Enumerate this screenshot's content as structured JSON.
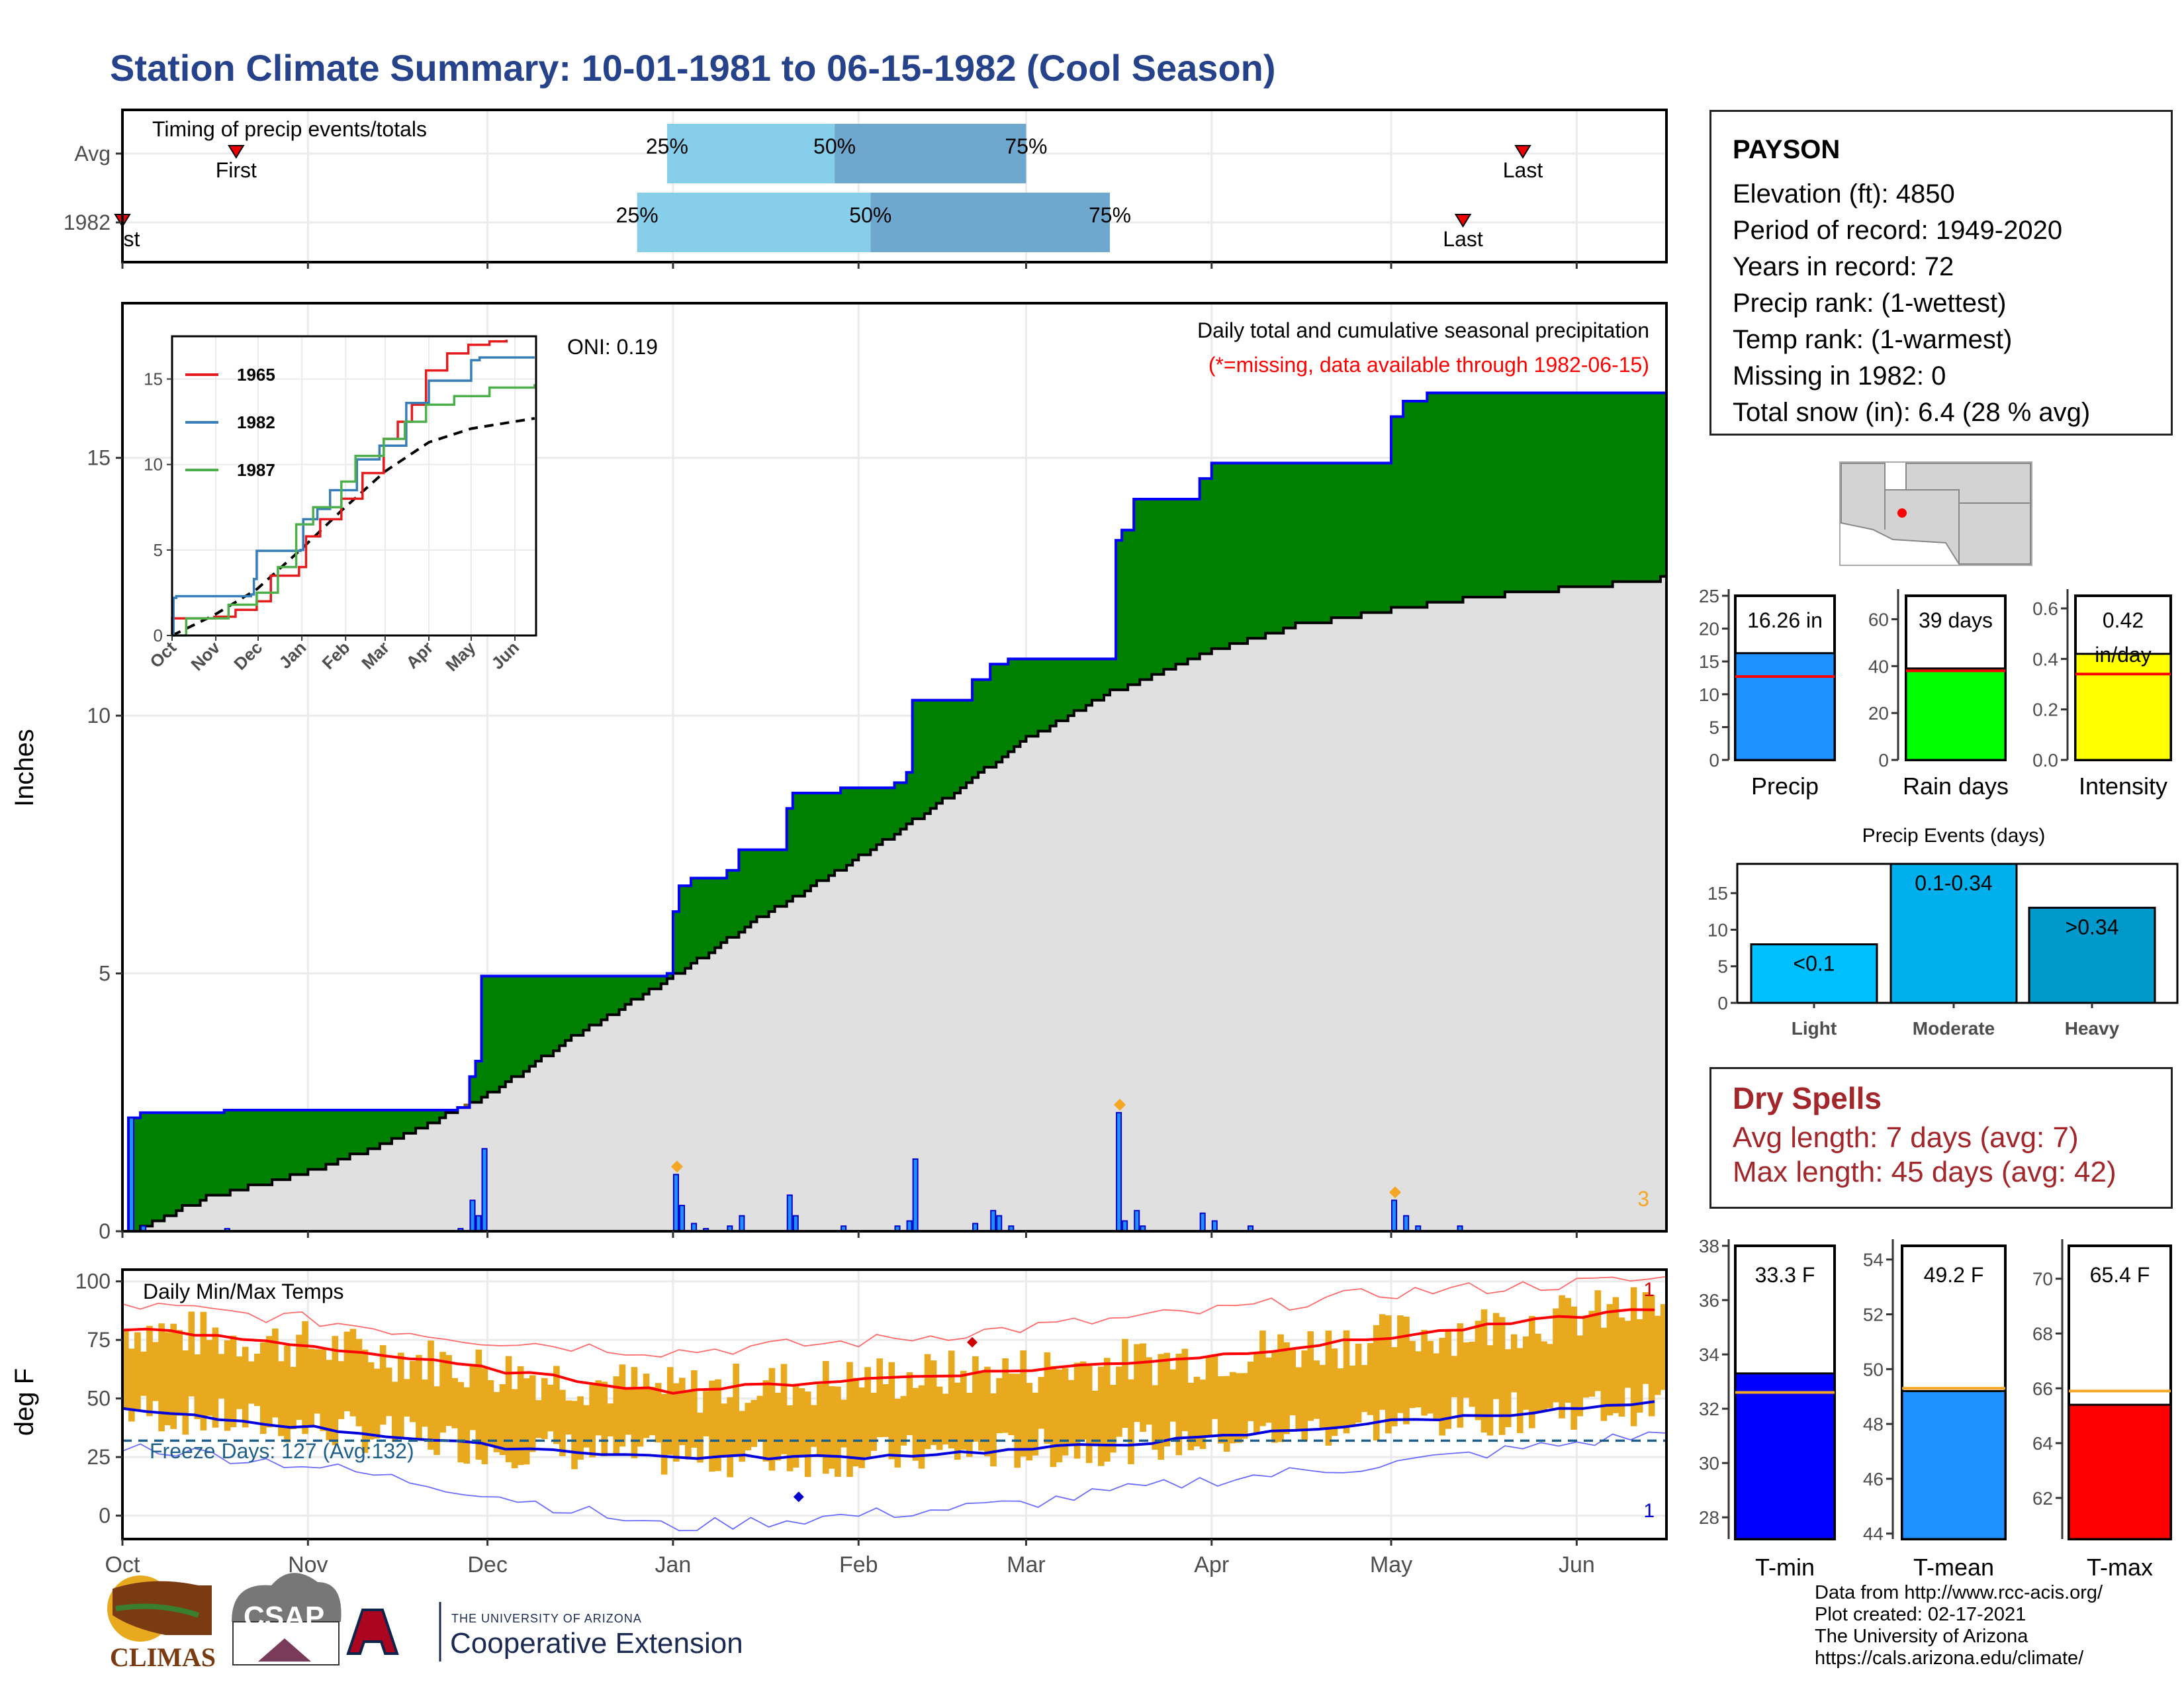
{
  "title": "Station Climate Summary: 10-01-1981 to 06-15-1982 (Cool Season)",
  "station": {
    "name": "PAYSON",
    "elevation": "Elevation (ft): 4850",
    "period": "Period of record: 1949-2020",
    "years": "Years in record: 72",
    "precip_rank": "Precip rank:  (1-wettest)",
    "temp_rank": "Temp rank:  (1-warmest)",
    "missing": "Missing in 1982: 0",
    "snow": "Total snow (in): 6.4 (28 % avg)"
  },
  "dry_spells": {
    "heading": "Dry Spells",
    "avg": "Avg length: 7 days (avg: 7)",
    "max": "Max length: 45 days (avg: 42)"
  },
  "credits": {
    "l1": "Data from http://www.rcc-acis.org/",
    "l2": "Plot created: 02-17-2021",
    "l3": "The University of Arizona",
    "l4": "https://cals.arizona.edu/climate/"
  },
  "logos": {
    "climas": "CLIMAS",
    "csap": "CSAP",
    "coop_small": "THE UNIVERSITY OF ARIZONA",
    "coop_big": "Cooperative Extension"
  },
  "colors": {
    "title": "#25428a",
    "green": "#008000",
    "blue_line": "#0000ff",
    "grey_fill": "#e0e0e0",
    "bar_blue": "#1e90ff",
    "rain_green": "#00ff00",
    "intensity_yellow": "#ffff00",
    "temp_bar": "#e8a91e",
    "dry_red": "#a3262a"
  },
  "chart_data": [
    {
      "id": "timing",
      "type": "bar",
      "title": "Timing of precip events/totals",
      "categories": [
        "Avg",
        "1982"
      ],
      "x_ticks": [
        "Oct",
        "Nov",
        "Dec",
        "Jan",
        "Feb",
        "Mar",
        "Apr",
        "May",
        "Jun"
      ],
      "rows": [
        {
          "label": "Avg",
          "first": "1981-10-20",
          "last": "1982-05-23",
          "q25": "1981-12-31",
          "q50": "1982-01-28",
          "q75": "1982-03-01",
          "first_label": "First",
          "last_label": "Last"
        },
        {
          "label": "1982",
          "first": "1981-10-01",
          "last": "1982-05-13",
          "q25": "1981-12-26",
          "q50": "1982-02-03",
          "q75": "1982-03-15",
          "first_label": "st",
          "last_label": "Last"
        }
      ],
      "quartile_labels": [
        "25%",
        "50%",
        "75%"
      ]
    },
    {
      "id": "precip_main",
      "type": "area",
      "title": "Daily total and cumulative seasonal precipitation",
      "subtitle": "(*=missing, data available through 1982-06-15)",
      "ylabel": "Inches",
      "ylim": [
        0,
        18
      ],
      "y_ticks": [
        0,
        5,
        10,
        15
      ],
      "x_ticks": [
        "Oct",
        "Nov",
        "Dec",
        "Jan",
        "Feb",
        "Mar",
        "Apr",
        "May",
        "Jun"
      ],
      "oni": "ONI: 0.19",
      "corner_count": "3",
      "cumulative_1982": [
        {
          "date": "1981-10-01",
          "in": 0.0
        },
        {
          "date": "1981-10-02",
          "in": 2.2
        },
        {
          "date": "1981-10-04",
          "in": 2.3
        },
        {
          "date": "1981-10-18",
          "in": 2.35
        },
        {
          "date": "1981-11-26",
          "in": 2.4
        },
        {
          "date": "1981-11-28",
          "in": 3.0
        },
        {
          "date": "1981-11-29",
          "in": 3.3
        },
        {
          "date": "1981-11-30",
          "in": 4.95
        },
        {
          "date": "1981-12-31",
          "in": 5.0
        },
        {
          "date": "1982-01-01",
          "in": 6.2
        },
        {
          "date": "1982-01-02",
          "in": 6.7
        },
        {
          "date": "1982-01-04",
          "in": 6.85
        },
        {
          "date": "1982-01-10",
          "in": 7.0
        },
        {
          "date": "1982-01-12",
          "in": 7.4
        },
        {
          "date": "1982-01-20",
          "in": 8.2
        },
        {
          "date": "1982-01-21",
          "in": 8.5
        },
        {
          "date": "1982-01-29",
          "in": 8.6
        },
        {
          "date": "1982-02-07",
          "in": 8.7
        },
        {
          "date": "1982-02-09",
          "in": 8.9
        },
        {
          "date": "1982-02-10",
          "in": 10.3
        },
        {
          "date": "1982-02-20",
          "in": 10.7
        },
        {
          "date": "1982-02-23",
          "in": 11.0
        },
        {
          "date": "1982-02-26",
          "in": 11.1
        },
        {
          "date": "1982-03-16",
          "in": 13.4
        },
        {
          "date": "1982-03-17",
          "in": 13.6
        },
        {
          "date": "1982-03-19",
          "in": 14.2
        },
        {
          "date": "1982-03-30",
          "in": 14.6
        },
        {
          "date": "1982-04-01",
          "in": 14.9
        },
        {
          "date": "1982-05-01",
          "in": 15.8
        },
        {
          "date": "1982-05-03",
          "in": 16.1
        },
        {
          "date": "1982-05-07",
          "in": 16.26
        },
        {
          "date": "1982-06-15",
          "in": 16.26
        }
      ],
      "cumulative_avg": [
        {
          "date": "1981-10-01",
          "in": 0.0
        },
        {
          "date": "1981-10-15",
          "in": 0.7
        },
        {
          "date": "1981-11-01",
          "in": 1.2
        },
        {
          "date": "1981-11-15",
          "in": 1.8
        },
        {
          "date": "1981-12-01",
          "in": 2.7
        },
        {
          "date": "1981-12-15",
          "in": 3.8
        },
        {
          "date": "1982-01-01",
          "in": 5.0
        },
        {
          "date": "1982-01-15",
          "in": 6.1
        },
        {
          "date": "1982-02-01",
          "in": 7.3
        },
        {
          "date": "1982-02-15",
          "in": 8.4
        },
        {
          "date": "1982-03-01",
          "in": 9.6
        },
        {
          "date": "1982-03-15",
          "in": 10.5
        },
        {
          "date": "1982-04-01",
          "in": 11.3
        },
        {
          "date": "1982-04-15",
          "in": 11.8
        },
        {
          "date": "1982-05-01",
          "in": 12.1
        },
        {
          "date": "1982-05-15",
          "in": 12.35
        },
        {
          "date": "1982-06-15",
          "in": 12.7
        }
      ],
      "daily_1982": [
        {
          "date": "1981-10-02",
          "in": 2.2
        },
        {
          "date": "1981-10-04",
          "in": 0.1
        },
        {
          "date": "1981-10-18",
          "in": 0.05
        },
        {
          "date": "1981-11-26",
          "in": 0.05
        },
        {
          "date": "1981-11-28",
          "in": 0.6
        },
        {
          "date": "1981-11-29",
          "in": 0.3
        },
        {
          "date": "1981-11-30",
          "in": 1.6
        },
        {
          "date": "1982-01-01",
          "in": 1.1
        },
        {
          "date": "1982-01-02",
          "in": 0.5
        },
        {
          "date": "1982-01-04",
          "in": 0.15
        },
        {
          "date": "1982-01-06",
          "in": 0.05
        },
        {
          "date": "1982-01-10",
          "in": 0.1
        },
        {
          "date": "1982-01-12",
          "in": 0.3
        },
        {
          "date": "1982-01-20",
          "in": 0.7
        },
        {
          "date": "1982-01-21",
          "in": 0.3
        },
        {
          "date": "1982-01-29",
          "in": 0.1
        },
        {
          "date": "1982-02-07",
          "in": 0.1
        },
        {
          "date": "1982-02-09",
          "in": 0.2
        },
        {
          "date": "1982-02-10",
          "in": 1.4
        },
        {
          "date": "1982-02-20",
          "in": 0.15
        },
        {
          "date": "1982-02-23",
          "in": 0.4
        },
        {
          "date": "1982-02-24",
          "in": 0.3
        },
        {
          "date": "1982-02-26",
          "in": 0.1
        },
        {
          "date": "1982-03-16",
          "in": 2.3
        },
        {
          "date": "1982-03-17",
          "in": 0.2
        },
        {
          "date": "1982-03-19",
          "in": 0.4
        },
        {
          "date": "1982-03-20",
          "in": 0.1
        },
        {
          "date": "1982-03-30",
          "in": 0.35
        },
        {
          "date": "1982-04-01",
          "in": 0.2
        },
        {
          "date": "1982-04-07",
          "in": 0.1
        },
        {
          "date": "1982-05-01",
          "in": 0.6
        },
        {
          "date": "1982-05-03",
          "in": 0.3
        },
        {
          "date": "1982-05-05",
          "in": 0.1
        },
        {
          "date": "1982-05-12",
          "in": 0.1
        }
      ],
      "record_markers": [
        "1982-01-01",
        "1982-03-16",
        "1982-05-01"
      ]
    },
    {
      "id": "inset",
      "type": "line",
      "x_ticks": [
        "Oct",
        "Nov",
        "Dec",
        "Jan",
        "Feb",
        "Mar",
        "Apr",
        "May",
        "Jun"
      ],
      "y_ticks": [
        0,
        5,
        10,
        15
      ],
      "ylim": [
        0,
        17.5
      ],
      "series": [
        {
          "name": "1965",
          "color": "#e41a1c",
          "points": [
            [
              0,
              0
            ],
            [
              0,
              1.0
            ],
            [
              30,
              1.1
            ],
            [
              45,
              1.5
            ],
            [
              60,
              2.0
            ],
            [
              70,
              3.5
            ],
            [
              90,
              4.0
            ],
            [
              95,
              5.8
            ],
            [
              105,
              6.8
            ],
            [
              120,
              8.0
            ],
            [
              135,
              9.5
            ],
            [
              150,
              11.5
            ],
            [
              160,
              12.5
            ],
            [
              170,
              13.5
            ],
            [
              180,
              15.5
            ],
            [
              195,
              16.5
            ],
            [
              210,
              17.0
            ],
            [
              225,
              17.2
            ],
            [
              237,
              17.3
            ]
          ]
        },
        {
          "name": "1982",
          "color": "#377eb8",
          "points": [
            [
              0,
              0
            ],
            [
              1,
              2.2
            ],
            [
              3,
              2.3
            ],
            [
              56,
              2.4
            ],
            [
              58,
              3.3
            ],
            [
              60,
              4.95
            ],
            [
              91,
              5.0
            ],
            [
              93,
              6.8
            ],
            [
              103,
              7.4
            ],
            [
              112,
              8.5
            ],
            [
              131,
              10.3
            ],
            [
              147,
              11.1
            ],
            [
              166,
              13.6
            ],
            [
              182,
              14.9
            ],
            [
              212,
              16.1
            ],
            [
              218,
              16.26
            ],
            [
              257,
              16.26
            ]
          ]
        },
        {
          "name": "1987",
          "color": "#4daf4a",
          "points": [
            [
              0,
              0
            ],
            [
              10,
              1.0
            ],
            [
              40,
              1.8
            ],
            [
              60,
              2.5
            ],
            [
              75,
              4.0
            ],
            [
              88,
              6.5
            ],
            [
              100,
              7.5
            ],
            [
              120,
              9.0
            ],
            [
              130,
              10.5
            ],
            [
              150,
              11.5
            ],
            [
              165,
              12.5
            ],
            [
              180,
              13.5
            ],
            [
              200,
              14.0
            ],
            [
              225,
              14.5
            ],
            [
              257,
              14.7
            ]
          ]
        }
      ],
      "avg_curve": [
        [
          0,
          0
        ],
        [
          30,
          1.2
        ],
        [
          60,
          2.7
        ],
        [
          91,
          5.0
        ],
        [
          120,
          7.3
        ],
        [
          151,
          9.6
        ],
        [
          182,
          11.3
        ],
        [
          212,
          12.1
        ],
        [
          257,
          12.7
        ]
      ]
    },
    {
      "id": "precip_total",
      "type": "bar",
      "xlabel": "Precip",
      "value_label": "16.26 in",
      "value": 16.26,
      "avg": 12.7,
      "ylim": [
        0,
        25
      ],
      "y_ticks": [
        0,
        5,
        10,
        15,
        20,
        25
      ]
    },
    {
      "id": "rain_days",
      "type": "bar",
      "xlabel": "Rain days",
      "value_label": "39 days",
      "value": 39,
      "avg": 38,
      "ylim": [
        0,
        70
      ],
      "y_ticks": [
        0,
        20,
        40,
        60
      ]
    },
    {
      "id": "intensity",
      "type": "bar",
      "xlabel": "Intensity",
      "value_label": "0.42",
      "value_label2": "in/day",
      "value": 0.42,
      "avg": 0.34,
      "ylim": [
        0,
        0.65
      ],
      "y_ticks": [
        0.0,
        0.2,
        0.4,
        0.6
      ]
    },
    {
      "id": "precip_events",
      "type": "bar",
      "title": "Precip Events (days)",
      "categories": [
        "Light",
        "Moderate",
        "Heavy"
      ],
      "bar_labels": [
        "<0.1",
        "0.1-0.34",
        ">0.34"
      ],
      "values": [
        8,
        19,
        13
      ],
      "ylim": [
        0,
        19
      ],
      "y_ticks": [
        0,
        5,
        10,
        15
      ]
    },
    {
      "id": "temps",
      "type": "bar",
      "title": "Daily Min/Max Temps",
      "ylabel": "deg F",
      "ylim": [
        -10,
        105
      ],
      "y_ticks": [
        0,
        25,
        50,
        75,
        100
      ],
      "x_ticks": [
        "Oct",
        "Nov",
        "Dec",
        "Jan",
        "Feb",
        "Mar",
        "Apr",
        "May",
        "Jun"
      ],
      "freeze_label": "Freeze Days: 127 (Avg:132)",
      "freeze_line": 32,
      "top_count": "1",
      "bottom_count": "1",
      "avg_max": [
        [
          0,
          80
        ],
        [
          30,
          73
        ],
        [
          60,
          63
        ],
        [
          91,
          53
        ],
        [
          122,
          58
        ],
        [
          150,
          62
        ],
        [
          181,
          68
        ],
        [
          211,
          76
        ],
        [
          257,
          89
        ]
      ],
      "avg_min": [
        [
          0,
          45
        ],
        [
          30,
          38
        ],
        [
          60,
          30
        ],
        [
          91,
          25
        ],
        [
          122,
          25
        ],
        [
          150,
          28
        ],
        [
          181,
          33
        ],
        [
          211,
          40
        ],
        [
          257,
          48
        ]
      ],
      "record_high": [
        [
          0,
          90
        ],
        [
          30,
          84
        ],
        [
          60,
          75
        ],
        [
          91,
          70
        ],
        [
          122,
          74
        ],
        [
          150,
          80
        ],
        [
          181,
          87
        ],
        [
          211,
          95
        ],
        [
          257,
          101
        ]
      ],
      "record_low": [
        [
          0,
          30
        ],
        [
          30,
          22
        ],
        [
          60,
          10
        ],
        [
          91,
          -5
        ],
        [
          122,
          0
        ],
        [
          150,
          5
        ],
        [
          181,
          15
        ],
        [
          211,
          22
        ],
        [
          257,
          35
        ]
      ],
      "max_marker": {
        "day": 142,
        "temp": 74
      },
      "min_marker": {
        "day": 113,
        "temp": 8
      }
    },
    {
      "id": "tmin",
      "type": "bar",
      "xlabel": "T-min",
      "value_label": "33.3 F",
      "value": 33.3,
      "avg": 32.6,
      "ylim": [
        27.2,
        38
      ],
      "y_ticks": [
        28,
        30,
        32,
        34,
        36,
        38
      ],
      "color": "#0000ff"
    },
    {
      "id": "tmean",
      "type": "bar",
      "xlabel": "T-mean",
      "value_label": "49.2 F",
      "value": 49.2,
      "avg": 49.3,
      "ylim": [
        43.8,
        54.5
      ],
      "y_ticks": [
        44,
        46,
        48,
        50,
        52,
        54
      ],
      "color": "#1e90ff"
    },
    {
      "id": "tmax",
      "type": "bar",
      "xlabel": "T-max",
      "value_label": "65.4 F",
      "value": 65.4,
      "avg": 65.9,
      "ylim": [
        60.5,
        71.2
      ],
      "y_ticks": [
        62,
        64,
        66,
        68,
        70
      ],
      "color": "#ff0000"
    }
  ]
}
